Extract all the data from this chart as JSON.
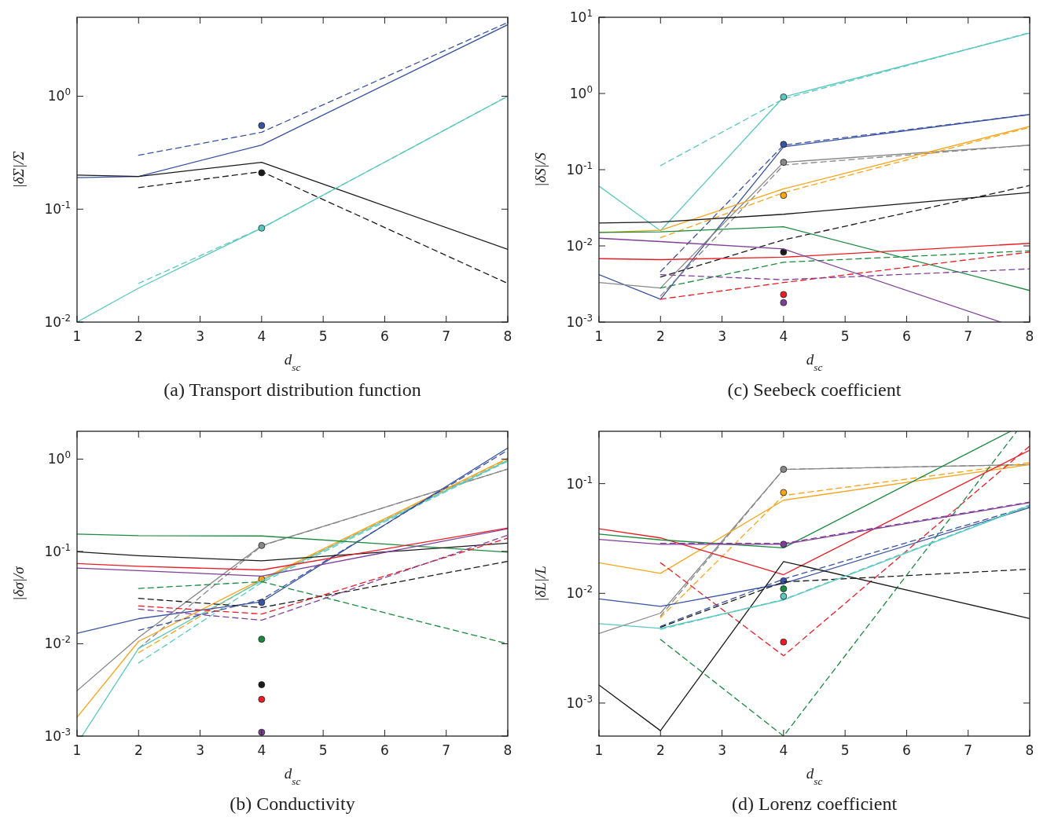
{
  "chart_data": [
    {
      "type": "line",
      "title": "(a) Transport distribution function",
      "xlabel": "d$_{sc}$",
      "ylabel": "|δΣ|/Σ",
      "log": true,
      "xlim": [
        1,
        8
      ],
      "xticks": [
        1,
        2,
        3,
        4,
        5,
        6,
        7,
        8
      ],
      "ylim": [
        0.01,
        5
      ],
      "yticks": [
        {
          "value": 0.01,
          "label": "10$^{-2}$"
        },
        {
          "value": 0.1,
          "label": "10$^{-1}$"
        },
        {
          "value": 1,
          "label": "10$^{0}$"
        }
      ],
      "series": [
        {
          "type": "line",
          "color": "#3953a4",
          "line_style": "solid",
          "x": [
            1,
            2,
            4,
            8
          ],
          "values": [
            0.19,
            0.195,
            0.37,
            4.3
          ]
        },
        {
          "type": "line",
          "color": "#3953a4",
          "line_style": "dashed",
          "x": [
            2,
            4,
            8
          ],
          "values": [
            0.3,
            0.48,
            4.5
          ]
        },
        {
          "type": "scatter",
          "color": "#3953a4",
          "marker": "circle",
          "x": [
            4
          ],
          "values": [
            0.55
          ]
        },
        {
          "type": "line",
          "color": "#1a1a1a",
          "line_style": "solid",
          "x": [
            1,
            2,
            4,
            8
          ],
          "values": [
            0.2,
            0.195,
            0.26,
            0.044
          ]
        },
        {
          "type": "line",
          "color": "#1a1a1a",
          "line_style": "dashed",
          "x": [
            2,
            4,
            8
          ],
          "values": [
            0.155,
            0.215,
            0.022
          ]
        },
        {
          "type": "scatter",
          "color": "#1a1a1a",
          "marker": "circle",
          "x": [
            4
          ],
          "values": [
            0.21
          ]
        },
        {
          "type": "line",
          "color": "#5bc8c0",
          "line_style": "solid",
          "x": [
            1,
            2,
            4,
            8
          ],
          "values": [
            0.01,
            0.02,
            0.068,
            1.0
          ]
        },
        {
          "type": "line",
          "color": "#5bc8c0",
          "line_style": "dashed",
          "x": [
            2,
            4,
            8
          ],
          "values": [
            0.022,
            0.068,
            1.0
          ]
        },
        {
          "type": "scatter",
          "color": "#5bc8c0",
          "marker": "circle",
          "x": [
            4
          ],
          "values": [
            0.068
          ]
        }
      ]
    },
    {
      "type": "line",
      "title": "(c) Seebeck coefficient",
      "xlabel": "d$_{sc}$",
      "ylabel": "|δS|/S",
      "log": true,
      "xlim": [
        1,
        8
      ],
      "xticks": [
        1,
        2,
        3,
        4,
        5,
        6,
        7,
        8
      ],
      "ylim": [
        0.001,
        10
      ],
      "yticks": [
        {
          "value": 0.001,
          "label": "10$^{-3}$"
        },
        {
          "value": 0.01,
          "label": "10$^{-2}$"
        },
        {
          "value": 0.1,
          "label": "10$^{-1}$"
        },
        {
          "value": 1,
          "label": "10$^{0}$"
        },
        {
          "value": 10,
          "label": "10$^{1}$"
        }
      ],
      "series": [
        {
          "type": "line",
          "color": "#5bc8c0",
          "line_style": "solid",
          "x": [
            1,
            2,
            4,
            8
          ],
          "values": [
            0.061,
            0.0158,
            0.9,
            6.2
          ]
        },
        {
          "type": "line",
          "color": "#5bc8c0",
          "line_style": "dashed",
          "x": [
            2,
            4,
            8
          ],
          "values": [
            0.113,
            0.85,
            6.3
          ]
        },
        {
          "type": "scatter",
          "color": "#5bc8c0",
          "marker": "circle",
          "x": [
            4
          ],
          "values": [
            0.9
          ]
        },
        {
          "type": "line",
          "color": "#3953a4",
          "line_style": "solid",
          "x": [
            1,
            2,
            4,
            8
          ],
          "values": [
            0.0042,
            0.002,
            0.2,
            0.53
          ]
        },
        {
          "type": "line",
          "color": "#3953a4",
          "line_style": "dashed",
          "x": [
            2,
            4,
            8
          ],
          "values": [
            0.0046,
            0.21,
            0.53
          ]
        },
        {
          "type": "scatter",
          "color": "#3953a4",
          "marker": "circle",
          "x": [
            4
          ],
          "values": [
            0.215
          ]
        },
        {
          "type": "line",
          "color": "#888888",
          "line_style": "solid",
          "x": [
            1,
            2,
            4,
            8
          ],
          "values": [
            0.0033,
            0.0028,
            0.125,
            0.21
          ]
        },
        {
          "type": "line",
          "color": "#888888",
          "line_style": "dashed",
          "x": [
            2,
            4,
            8
          ],
          "values": [
            0.0022,
            0.115,
            0.21
          ]
        },
        {
          "type": "scatter",
          "color": "#888888",
          "marker": "circle",
          "x": [
            4
          ],
          "values": [
            0.125
          ]
        },
        {
          "type": "line",
          "color": "#f8a51b",
          "line_style": "solid",
          "x": [
            1,
            2,
            4,
            8
          ],
          "values": [
            0.015,
            0.016,
            0.056,
            0.37
          ]
        },
        {
          "type": "line",
          "color": "#f8a51b",
          "line_style": "dashed",
          "x": [
            2,
            4,
            8
          ],
          "values": [
            0.0128,
            0.05,
            0.36
          ]
        },
        {
          "type": "scatter",
          "color": "#f8a51b",
          "marker": "circle",
          "x": [
            4
          ],
          "values": [
            0.046
          ]
        },
        {
          "type": "line",
          "color": "#1a1a1a",
          "line_style": "solid",
          "x": [
            1,
            2,
            4,
            8
          ],
          "values": [
            0.02,
            0.0206,
            0.026,
            0.05
          ]
        },
        {
          "type": "line",
          "color": "#1a1a1a",
          "line_style": "dashed",
          "x": [
            2,
            4,
            8
          ],
          "values": [
            0.0039,
            0.012,
            0.062
          ]
        },
        {
          "type": "scatter",
          "color": "#1a1a1a",
          "marker": "circle",
          "x": [
            4
          ],
          "values": [
            0.0083
          ]
        },
        {
          "type": "line",
          "color": "#1a8a3e",
          "line_style": "solid",
          "x": [
            1,
            2,
            4,
            8
          ],
          "values": [
            0.015,
            0.0153,
            0.0178,
            0.0026
          ]
        },
        {
          "type": "line",
          "color": "#1a8a3e",
          "line_style": "dashed",
          "x": [
            2,
            4,
            8
          ],
          "values": [
            0.0028,
            0.0061,
            0.0086
          ]
        },
        {
          "type": "line",
          "color": "#ed1c24",
          "line_style": "solid",
          "x": [
            1,
            2,
            4,
            8
          ],
          "values": [
            0.0068,
            0.0066,
            0.0071,
            0.0108
          ]
        },
        {
          "type": "line",
          "color": "#ed1c24",
          "line_style": "dashed",
          "x": [
            2,
            4,
            8
          ],
          "values": [
            0.002,
            0.0033,
            0.0083
          ]
        },
        {
          "type": "scatter",
          "color": "#ed1c24",
          "marker": "circle",
          "x": [
            4
          ],
          "values": [
            0.0023
          ]
        },
        {
          "type": "line",
          "color": "#7f3f98",
          "line_style": "solid",
          "x": [
            1,
            2,
            4,
            7.53
          ],
          "values": [
            0.0126,
            0.0114,
            0.0091,
            0.001
          ]
        },
        {
          "type": "line",
          "color": "#7f3f98",
          "line_style": "dashed",
          "x": [
            2,
            4,
            8
          ],
          "values": [
            0.0042,
            0.0036,
            0.005
          ]
        },
        {
          "type": "scatter",
          "color": "#7f3f98",
          "marker": "circle",
          "x": [
            4
          ],
          "values": [
            0.0018
          ]
        }
      ]
    },
    {
      "type": "line",
      "title": "(b) Conductivity",
      "xlabel": "d$_{sc}$",
      "ylabel": "|δσ|/σ",
      "log": true,
      "xlim": [
        1,
        8
      ],
      "xticks": [
        1,
        2,
        3,
        4,
        5,
        6,
        7,
        8
      ],
      "ylim": [
        0.001,
        2
      ],
      "yticks": [
        {
          "value": 0.001,
          "label": "10$^{-3}$"
        },
        {
          "value": 0.01,
          "label": "10$^{-2}$"
        },
        {
          "value": 0.1,
          "label": "10$^{-1}$"
        },
        {
          "value": 1,
          "label": "10$^{0}$"
        }
      ],
      "series": [
        {
          "type": "line",
          "color": "#888888",
          "line_style": "solid",
          "x": [
            1,
            2,
            4,
            8
          ],
          "values": [
            0.0031,
            0.0117,
            0.116,
            0.78
          ]
        },
        {
          "type": "line",
          "color": "#888888",
          "line_style": "dashed",
          "x": [
            2,
            4,
            8
          ],
          "values": [
            0.0089,
            0.115,
            0.78
          ]
        },
        {
          "type": "scatter",
          "color": "#888888",
          "marker": "circle",
          "x": [
            4
          ],
          "values": [
            0.116
          ]
        },
        {
          "type": "line",
          "color": "#f8a51b",
          "line_style": "solid",
          "x": [
            1,
            2,
            4,
            8
          ],
          "values": [
            0.0016,
            0.0106,
            0.05,
            1.02
          ]
        },
        {
          "type": "line",
          "color": "#f8a51b",
          "line_style": "dashed",
          "x": [
            2,
            4,
            8
          ],
          "values": [
            0.008,
            0.049,
            1.0
          ]
        },
        {
          "type": "scatter",
          "color": "#f8a51b",
          "marker": "circle",
          "x": [
            4
          ],
          "values": [
            0.05
          ]
        },
        {
          "type": "line",
          "color": "#5bc8c0",
          "line_style": "solid",
          "x": [
            1.08,
            2,
            4,
            8
          ],
          "values": [
            0.001,
            0.0089,
            0.048,
            0.97
          ]
        },
        {
          "type": "line",
          "color": "#5bc8c0",
          "line_style": "dashed",
          "x": [
            2,
            4,
            8
          ],
          "values": [
            0.0062,
            0.046,
            0.95
          ]
        },
        {
          "type": "line",
          "color": "#3953a4",
          "line_style": "solid",
          "x": [
            1,
            2,
            4,
            8
          ],
          "values": [
            0.013,
            0.0187,
            0.0284,
            1.32
          ]
        },
        {
          "type": "line",
          "color": "#3953a4",
          "line_style": "dashed",
          "x": [
            2,
            4,
            8
          ],
          "values": [
            0.014,
            0.03,
            1.25
          ]
        },
        {
          "type": "scatter",
          "color": "#3953a4",
          "marker": "circle",
          "x": [
            4
          ],
          "values": [
            0.028
          ]
        },
        {
          "type": "line",
          "color": "#1a8a3e",
          "line_style": "solid",
          "x": [
            1,
            2,
            4,
            8
          ],
          "values": [
            0.154,
            0.148,
            0.147,
            0.098
          ]
        },
        {
          "type": "line",
          "color": "#1a8a3e",
          "line_style": "dashed",
          "x": [
            2,
            4,
            8
          ],
          "values": [
            0.0397,
            0.047,
            0.01
          ]
        },
        {
          "type": "scatter",
          "color": "#1a8a3e",
          "marker": "circle",
          "x": [
            4
          ],
          "values": [
            0.0112
          ]
        },
        {
          "type": "line",
          "color": "#1a1a1a",
          "line_style": "solid",
          "x": [
            1,
            2,
            4,
            8
          ],
          "values": [
            0.099,
            0.09,
            0.079,
            0.123
          ]
        },
        {
          "type": "line",
          "color": "#1a1a1a",
          "line_style": "dashed",
          "x": [
            2,
            4,
            8
          ],
          "values": [
            0.031,
            0.0247,
            0.078
          ]
        },
        {
          "type": "scatter",
          "color": "#1a1a1a",
          "marker": "circle",
          "x": [
            4
          ],
          "values": [
            0.0036
          ]
        },
        {
          "type": "line",
          "color": "#ed1c24",
          "line_style": "solid",
          "x": [
            1,
            2,
            4,
            8
          ],
          "values": [
            0.074,
            0.069,
            0.063,
            0.179
          ]
        },
        {
          "type": "line",
          "color": "#ed1c24",
          "line_style": "dashed",
          "x": [
            2,
            4,
            8
          ],
          "values": [
            0.0257,
            0.021,
            0.139
          ]
        },
        {
          "type": "scatter",
          "color": "#ed1c24",
          "marker": "circle",
          "x": [
            4
          ],
          "values": [
            0.0025
          ]
        },
        {
          "type": "line",
          "color": "#7f3f98",
          "line_style": "solid",
          "x": [
            1,
            2,
            4,
            8
          ],
          "values": [
            0.066,
            0.062,
            0.054,
            0.176
          ]
        },
        {
          "type": "line",
          "color": "#7f3f98",
          "line_style": "dashed",
          "x": [
            2,
            4,
            8
          ],
          "values": [
            0.0237,
            0.018,
            0.15
          ]
        },
        {
          "type": "scatter",
          "color": "#7f3f98",
          "marker": "circle",
          "x": [
            4
          ],
          "values": [
            0.0011
          ]
        }
      ]
    },
    {
      "type": "line",
      "title": "(d) Lorenz coefficient",
      "xlabel": "d$_{sc}$",
      "ylabel": "|δL|/L",
      "log": true,
      "xlim": [
        1,
        8
      ],
      "xticks": [
        1,
        2,
        3,
        4,
        5,
        6,
        7,
        8
      ],
      "ylim": [
        0.0005,
        0.3
      ],
      "yticks": [
        {
          "value": 0.001,
          "label": "10$^{-3}$"
        },
        {
          "value": 0.01,
          "label": "10$^{-2}$"
        },
        {
          "value": 0.1,
          "label": "10$^{-1}$"
        }
      ],
      "series": [
        {
          "type": "line",
          "color": "#888888",
          "line_style": "solid",
          "x": [
            1,
            2,
            4,
            8
          ],
          "values": [
            0.0043,
            0.0066,
            0.135,
            0.149
          ]
        },
        {
          "type": "line",
          "color": "#888888",
          "line_style": "dashed",
          "x": [
            2,
            4,
            8
          ],
          "values": [
            0.0062,
            0.135,
            0.149
          ]
        },
        {
          "type": "scatter",
          "color": "#888888",
          "marker": "circle",
          "x": [
            4
          ],
          "values": [
            0.135
          ]
        },
        {
          "type": "line",
          "color": "#f8a51b",
          "line_style": "solid",
          "x": [
            1,
            2,
            4,
            8
          ],
          "values": [
            0.019,
            0.0152,
            0.0706,
            0.149
          ]
        },
        {
          "type": "line",
          "color": "#f8a51b",
          "line_style": "dashed",
          "x": [
            2,
            4,
            8
          ],
          "values": [
            0.006,
            0.078,
            0.155
          ]
        },
        {
          "type": "scatter",
          "color": "#f8a51b",
          "marker": "circle",
          "x": [
            4
          ],
          "values": [
            0.083
          ]
        },
        {
          "type": "line",
          "color": "#ed1c24",
          "line_style": "solid",
          "x": [
            1,
            2,
            4,
            8
          ],
          "values": [
            0.0387,
            0.032,
            0.0148,
            0.202
          ]
        },
        {
          "type": "line",
          "color": "#ed1c24",
          "line_style": "dashed",
          "x": [
            2,
            4,
            8
          ],
          "values": [
            0.019,
            0.0027,
            0.22
          ]
        },
        {
          "type": "scatter",
          "color": "#ed1c24",
          "marker": "circle",
          "x": [
            4
          ],
          "values": [
            0.0036
          ]
        },
        {
          "type": "line",
          "color": "#1a8a3e",
          "line_style": "solid",
          "x": [
            1,
            2,
            4,
            7.69
          ],
          "values": [
            0.0347,
            0.0307,
            0.026,
            0.3
          ]
        },
        {
          "type": "line",
          "color": "#1a8a3e",
          "line_style": "dashed",
          "x": [
            2,
            4,
            7.79
          ],
          "values": [
            0.0038,
            0.0005,
            0.3
          ]
        },
        {
          "type": "scatter",
          "color": "#1a8a3e",
          "marker": "circle",
          "x": [
            4
          ],
          "values": [
            0.011
          ]
        },
        {
          "type": "line",
          "color": "#7f3f98",
          "line_style": "solid",
          "x": [
            1,
            2,
            4,
            8
          ],
          "values": [
            0.031,
            0.028,
            0.028,
            0.067
          ]
        },
        {
          "type": "line",
          "color": "#7f3f98",
          "line_style": "dashed",
          "x": [
            2,
            4,
            8
          ],
          "values": [
            0.0286,
            0.0285,
            0.068
          ]
        },
        {
          "type": "scatter",
          "color": "#7f3f98",
          "marker": "circle",
          "x": [
            4
          ],
          "values": [
            0.028
          ]
        },
        {
          "type": "line",
          "color": "#3953a4",
          "line_style": "solid",
          "x": [
            1,
            2,
            4,
            8
          ],
          "values": [
            0.0089,
            0.0076,
            0.0123,
            0.0605
          ]
        },
        {
          "type": "line",
          "color": "#3953a4",
          "line_style": "dashed",
          "x": [
            2,
            4,
            8
          ],
          "values": [
            0.005,
            0.0135,
            0.062
          ]
        },
        {
          "type": "scatter",
          "color": "#3953a4",
          "marker": "circle",
          "x": [
            4
          ],
          "values": [
            0.013
          ]
        },
        {
          "type": "line",
          "color": "#1a1a1a",
          "line_style": "solid",
          "x": [
            1,
            2,
            4,
            8
          ],
          "values": [
            0.00146,
            0.00056,
            0.0195,
            0.0059
          ]
        },
        {
          "type": "line",
          "color": "#1a1a1a",
          "line_style": "dashed",
          "x": [
            2,
            4,
            8
          ],
          "values": [
            0.0049,
            0.0127,
            0.0166
          ]
        },
        {
          "type": "line",
          "color": "#5bc8c0",
          "line_style": "solid",
          "x": [
            1,
            2,
            4,
            8
          ],
          "values": [
            0.0053,
            0.0048,
            0.0087,
            0.063
          ]
        },
        {
          "type": "line",
          "color": "#5bc8c0",
          "line_style": "dashed",
          "x": [
            2,
            4,
            8
          ],
          "values": [
            0.0047,
            0.0088,
            0.064
          ]
        },
        {
          "type": "scatter",
          "color": "#5bc8c0",
          "marker": "circle",
          "x": [
            4
          ],
          "values": [
            0.0094
          ]
        }
      ]
    }
  ]
}
